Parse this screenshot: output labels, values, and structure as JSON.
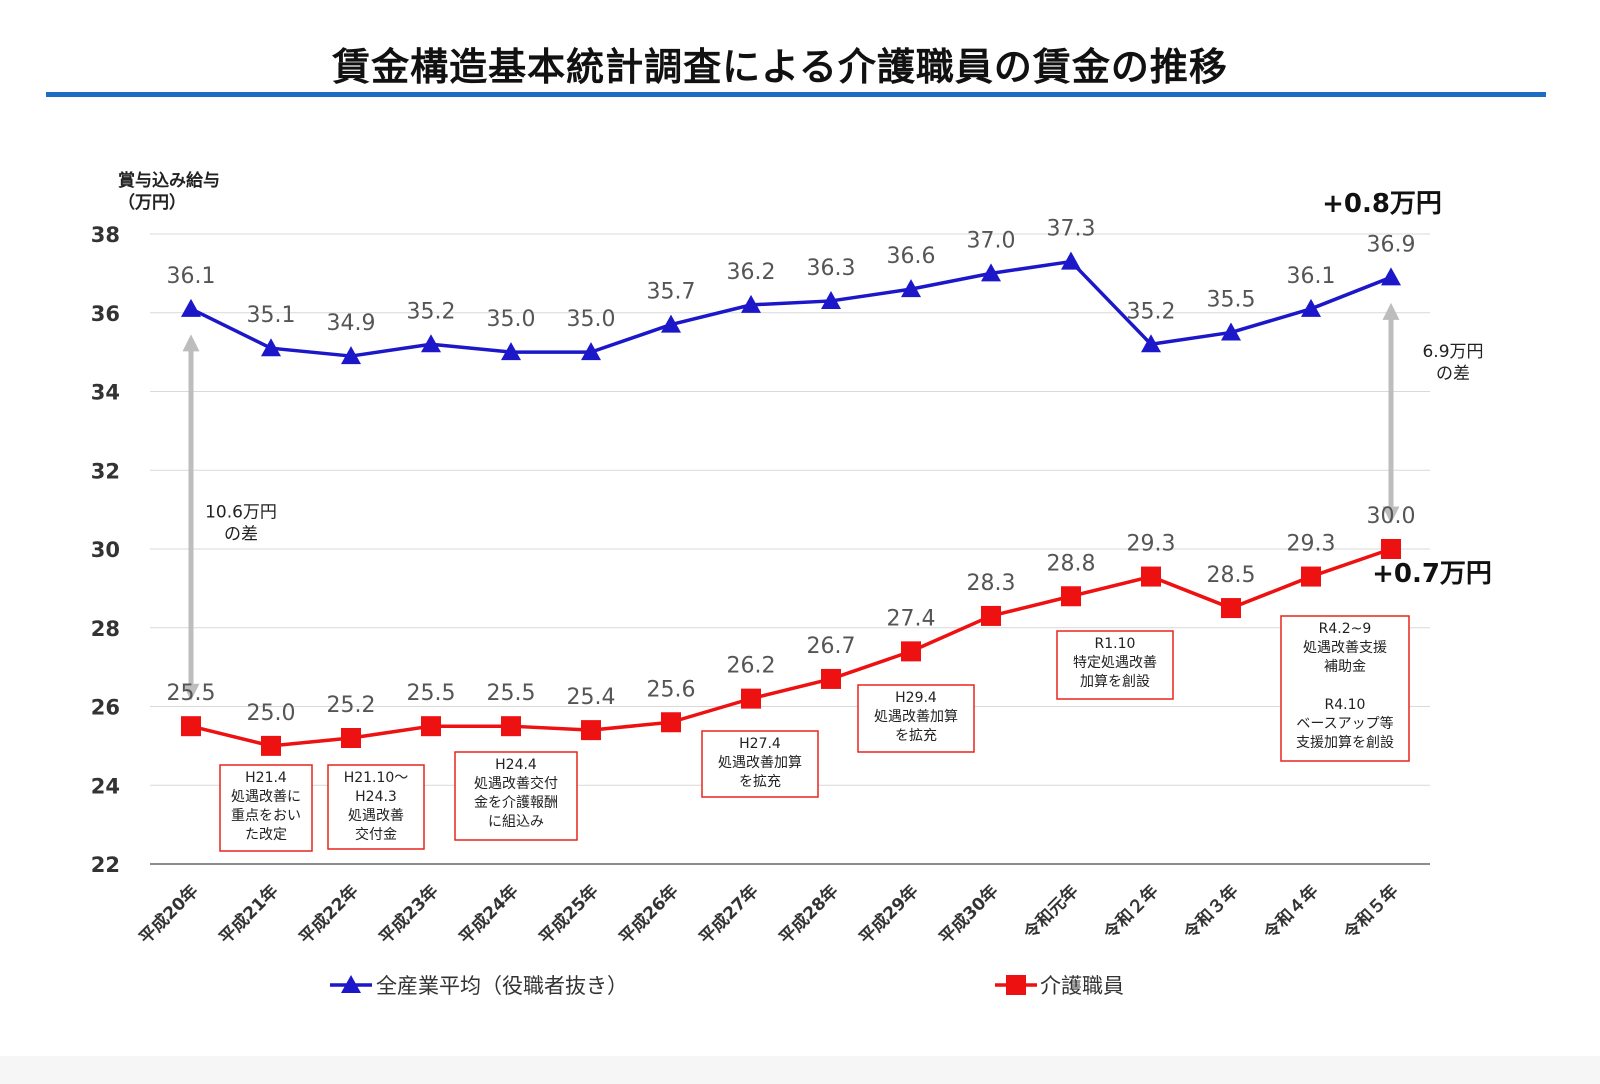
{
  "title": "賃金構造基本統計調査による介護職員の賃金の推移",
  "chart_data": {
    "type": "line",
    "title": "賃金構造基本統計調査による介護職員の賃金の推移",
    "ylabel_lines": [
      "賞与込み給与",
      "（万円）"
    ],
    "xlabel": "",
    "ylim": [
      22,
      38
    ],
    "yticks": [
      22,
      24,
      26,
      28,
      30,
      32,
      34,
      36,
      38
    ],
    "grid": true,
    "categories": [
      "平成20年",
      "平成21年",
      "平成22年",
      "平成23年",
      "平成24年",
      "平成25年",
      "平成26年",
      "平成27年",
      "平成28年",
      "平成29年",
      "平成30年",
      "令和元年",
      "令和２年",
      "令和３年",
      "令和４年",
      "令和５年"
    ],
    "series": [
      {
        "name": "全産業平均（役職者抜き）",
        "color": "#1c17c8",
        "marker": "triangle",
        "values": [
          36.1,
          35.1,
          34.9,
          35.2,
          35.0,
          35.0,
          35.7,
          36.2,
          36.3,
          36.6,
          37.0,
          37.3,
          35.2,
          35.5,
          36.1,
          36.9
        ],
        "labels": [
          "36.1",
          "35.1",
          "34.9",
          "35.2",
          "35.0",
          "35.0",
          "35.7",
          "36.2",
          "36.3",
          "36.6",
          "37.0",
          "37.3",
          "35.2",
          "35.5",
          "36.1",
          "36.9"
        ]
      },
      {
        "name": "介護職員",
        "color": "#ee1111",
        "marker": "square",
        "values": [
          25.5,
          25.0,
          25.2,
          25.5,
          25.5,
          25.4,
          25.6,
          26.2,
          26.7,
          27.4,
          28.3,
          28.8,
          29.3,
          28.5,
          29.3,
          30.0
        ],
        "labels": [
          "25.5",
          "25.0",
          "25.2",
          "25.5",
          "25.5",
          "25.4",
          "25.6",
          "26.2",
          "26.7",
          "27.4",
          "28.3",
          "28.8",
          "29.3",
          "28.5",
          "29.3",
          "30.0"
        ]
      }
    ],
    "legend": [
      "全産業平均（役職者抜き）",
      "介護職員"
    ],
    "legend_position": "bottom",
    "deltas": {
      "top": "+0.8万円",
      "bottom": "+0.7万円"
    },
    "gaps": [
      {
        "index": 0,
        "from": 36.1,
        "to": 25.5,
        "lines": [
          "10.6万円",
          "の差"
        ]
      },
      {
        "index": 15,
        "from": 36.9,
        "to": 30.0,
        "lines": [
          "6.9万円",
          "の差"
        ]
      }
    ],
    "annotations": [
      {
        "lines": [
          "H21.4",
          "処遇改善に",
          "重点をおい",
          "た改定"
        ]
      },
      {
        "lines": [
          "H21.10～",
          "H24.3",
          "処遇改善",
          "交付金"
        ]
      },
      {
        "lines": [
          "H24.4",
          "処遇改善交付",
          "金を介護報酬",
          "に組込み"
        ]
      },
      {
        "lines": [
          "H27.4",
          "処遇改善加算",
          "を拡充"
        ]
      },
      {
        "lines": [
          "H29.4",
          "処遇改善加算",
          "を拡充"
        ]
      },
      {
        "lines": [
          "R1.10",
          "特定処遇改善",
          "加算を創設"
        ]
      },
      {
        "lines": [
          "R4.2~9",
          "処遇改善支援",
          "補助金",
          "",
          "R4.10",
          "ベースアップ等",
          "支援加算を創設"
        ]
      }
    ]
  }
}
